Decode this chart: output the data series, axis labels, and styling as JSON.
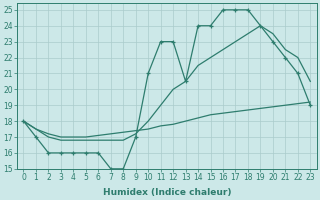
{
  "xlabel": "Humidex (Indice chaleur)",
  "background_color": "#cce8e8",
  "line_color": "#2e7d6e",
  "grid_color": "#aacccc",
  "xlim": [
    -0.5,
    23.5
  ],
  "ylim": [
    15,
    25.4
  ],
  "yticks": [
    15,
    16,
    17,
    18,
    19,
    20,
    21,
    22,
    23,
    24,
    25
  ],
  "xticks": [
    0,
    1,
    2,
    3,
    4,
    5,
    6,
    7,
    8,
    9,
    10,
    11,
    12,
    13,
    14,
    15,
    16,
    17,
    18,
    19,
    20,
    21,
    22,
    23
  ],
  "hours": [
    0,
    1,
    2,
    3,
    4,
    5,
    6,
    7,
    8,
    9,
    10,
    11,
    12,
    13,
    14,
    15,
    16,
    17,
    18,
    19,
    20,
    21,
    22,
    23
  ],
  "line_upper": [
    18,
    17,
    16,
    16,
    16,
    16,
    16,
    15,
    15,
    17,
    21,
    23,
    23,
    20.5,
    24,
    24,
    25,
    25,
    25,
    24,
    23,
    22,
    21,
    19
  ],
  "line_mid": [
    18,
    17.5,
    17,
    16.8,
    16.8,
    16.8,
    16.8,
    16.8,
    16.8,
    17.2,
    18,
    19,
    20,
    20.5,
    21.5,
    22,
    22.5,
    23,
    23.5,
    24,
    23.5,
    22.5,
    22,
    20.5
  ],
  "line_bottom": [
    18,
    17.5,
    17.2,
    17.0,
    17.0,
    17.0,
    17.1,
    17.2,
    17.3,
    17.4,
    17.5,
    17.7,
    17.8,
    18.0,
    18.2,
    18.4,
    18.5,
    18.6,
    18.7,
    18.8,
    18.9,
    19.0,
    19.1,
    19.2
  ],
  "xlabel_fontsize": 6.5,
  "tick_fontsize": 5.5
}
